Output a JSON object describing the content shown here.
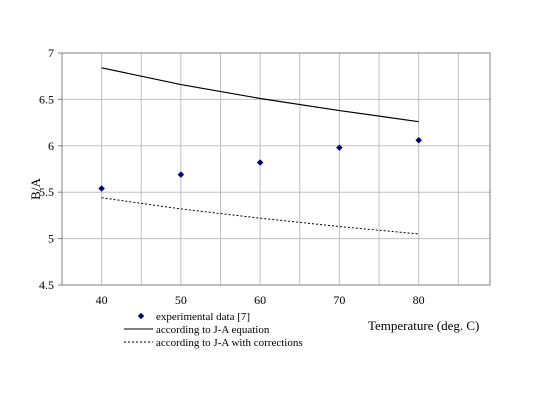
{
  "chart_data": {
    "type": "line",
    "title": "",
    "xlabel": "Temperature (deg. C)",
    "ylabel": "B/A",
    "xlim": [
      35,
      89
    ],
    "ylim": [
      4.5,
      7
    ],
    "x_ticks": [
      40,
      50,
      60,
      70,
      80
    ],
    "y_ticks": [
      4.5,
      5,
      5.5,
      6,
      6.5,
      7
    ],
    "y_tick_labels": [
      "4.5",
      "5",
      "5.5",
      "6",
      "6.5",
      "7"
    ],
    "grid": true,
    "legend_position": "bottom-left",
    "series": [
      {
        "name": "experimental data [7]",
        "style": "markers",
        "color": "#00007f",
        "x": [
          40,
          50,
          60,
          70,
          80
        ],
        "y": [
          5.54,
          5.69,
          5.82,
          5.98,
          6.06
        ]
      },
      {
        "name": "according to J-A equation",
        "style": "solid",
        "color": "#000000",
        "x": [
          40,
          50,
          60,
          70,
          80
        ],
        "y": [
          6.84,
          6.66,
          6.51,
          6.38,
          6.26
        ]
      },
      {
        "name": "according to J-A with corrections",
        "style": "dotted",
        "color": "#000000",
        "x": [
          40,
          50,
          60,
          70,
          80
        ],
        "y": [
          5.44,
          5.32,
          5.22,
          5.13,
          5.05
        ]
      }
    ]
  }
}
